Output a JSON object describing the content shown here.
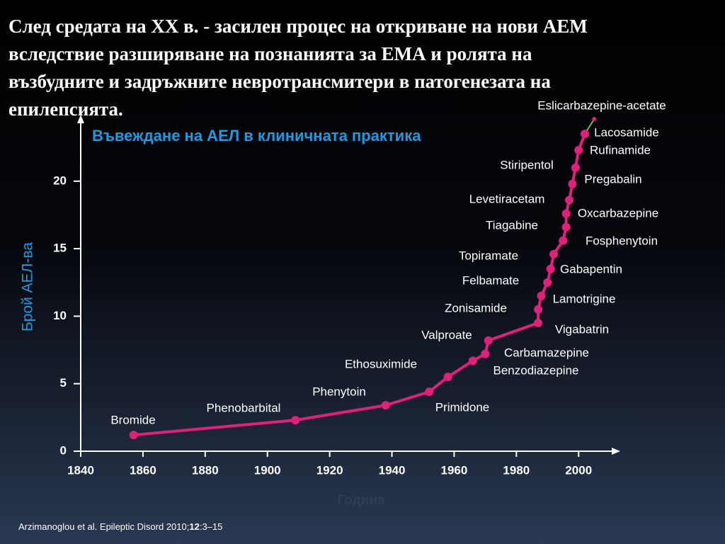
{
  "slide": {
    "heading_lines": [
      "След средата на ХХ в.  -  засилен процес на откриване на нови АЕМ",
      "вследствие разширяване на познанията за ЕМА и ролята на",
      "възбудните и задръжните невротрансмитери в патогенезата на",
      "епилепсията."
    ],
    "citation": {
      "text": "Arzimanoglou et al. Epileptic Disord 2010;",
      "volume": "12",
      "pages": ":3–15"
    }
  },
  "chart_data": {
    "type": "line",
    "title": "Въвеждане на АЕЛ в клиничната практика",
    "x_label": "Година",
    "y_label": "Брой АЕЛ-ва",
    "x": [
      1857,
      1909,
      1938,
      1952,
      1958,
      1966,
      1970,
      1971,
      1987,
      1987,
      1988,
      1990,
      1991,
      1992,
      1995,
      1996,
      1996,
      1997,
      1998,
      1999,
      2000,
      2002,
      2005
    ],
    "series": [
      {
        "color": "#e2207b",
        "values": [
          1.2,
          2.3,
          3.4,
          4.4,
          5.5,
          6.7,
          7.2,
          8.2,
          9.5,
          10.5,
          11.5,
          12.5,
          13.5,
          14.6,
          15.6,
          16.6,
          17.6,
          18.6,
          19.8,
          21.0,
          22.3,
          23.5,
          24.6
        ]
      }
    ],
    "point_labels": [
      "Bromide",
      "Phenobarbital",
      "Phenytoin",
      "Primidone",
      "Ethosuximide",
      "Benzodiazepine",
      "Carbamazepine",
      "Valproate",
      "Vigabatrin",
      "Zonisamide",
      "Lamotrigine",
      "Felbamate",
      "Gabapentin",
      "Topiramate",
      "Fosphenytoin",
      "Tiagabine",
      "Oxcarbazepine",
      "Levetiracetam",
      "Pregabalin",
      "Stiripentol",
      "Rufinamide",
      "Lacosamide",
      "Eslicarbazepine-acetate"
    ],
    "last_segment_color": "#7dbb3c",
    "xlim": [
      1840,
      2012
    ],
    "ylim": [
      0,
      24.5
    ],
    "xticks": [
      1840,
      1860,
      1880,
      1900,
      1920,
      1940,
      1960,
      1980,
      2000
    ],
    "yticks": [
      0,
      5,
      10,
      15,
      20
    ],
    "grid": false
  }
}
